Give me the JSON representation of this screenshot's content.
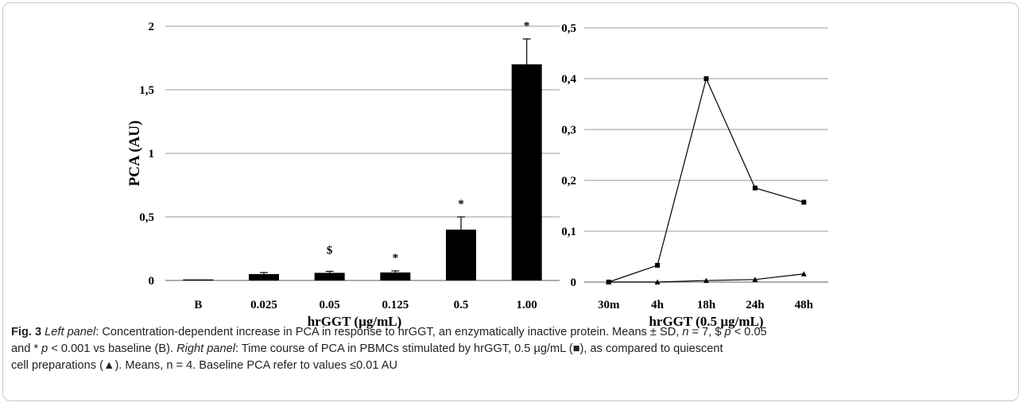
{
  "chart_data": [
    {
      "type": "bar",
      "categories": [
        "B",
        "0.025",
        "0.05",
        "0.125",
        "0.5",
        "1.00"
      ],
      "values": [
        0.008,
        0.05,
        0.06,
        0.063,
        0.4,
        1.7
      ],
      "error": [
        0,
        0.012,
        0.012,
        0.012,
        0.1,
        0.2
      ],
      "annotations": [
        "",
        "",
        "$",
        "*",
        "*",
        "*"
      ],
      "ylabel": "PCA (AU)",
      "xlabel": "hrGGT (µg/mL)",
      "ylim": [
        0,
        2
      ],
      "yticks": [
        "0",
        "0,5",
        "1",
        "1,5",
        "2"
      ],
      "grid": true,
      "bar_color": "#000000"
    },
    {
      "type": "line",
      "categories": [
        "30m",
        "4h",
        "18h",
        "24h",
        "48h"
      ],
      "series": [
        {
          "marker": "square",
          "values": [
            0,
            0.033,
            0.4,
            0.185,
            0.157
          ]
        },
        {
          "marker": "triangle",
          "values": [
            0,
            0,
            0.003,
            0.005,
            0.016
          ]
        }
      ],
      "xlabel": "hrGGT (0.5 µg/mL)",
      "ylim": [
        0,
        0.5
      ],
      "yticks": [
        "0",
        "0,1",
        "0,2",
        "0,3",
        "0,4",
        "0,5"
      ],
      "grid": true
    }
  ],
  "caption": {
    "fig_label": "Fig. 3",
    "left_panel_label": "Left panel",
    "left_text_1": ": Concentration-dependent increase in PCA in response to hrGGT, an enzymatically inactive protein. Means ± SD, ",
    "n_var": "n",
    "left_text_2": " = 7, $ ",
    "p_var_1": "p",
    "left_text_3": " < 0.05",
    "line2_text_1": "and * ",
    "p_var_2": "p",
    "line2_text_2": " < 0.001 vs baseline (B). ",
    "right_panel_label": "Right panel",
    "line2_text_3": ": Time course of PCA in PBMCs stimulated by hrGGT, 0.5 µg/mL (■), as compared to quiescent",
    "line3_text": "cell preparations (▲). Means, n = 4. Baseline PCA refer to values ≤0.01 AU"
  }
}
